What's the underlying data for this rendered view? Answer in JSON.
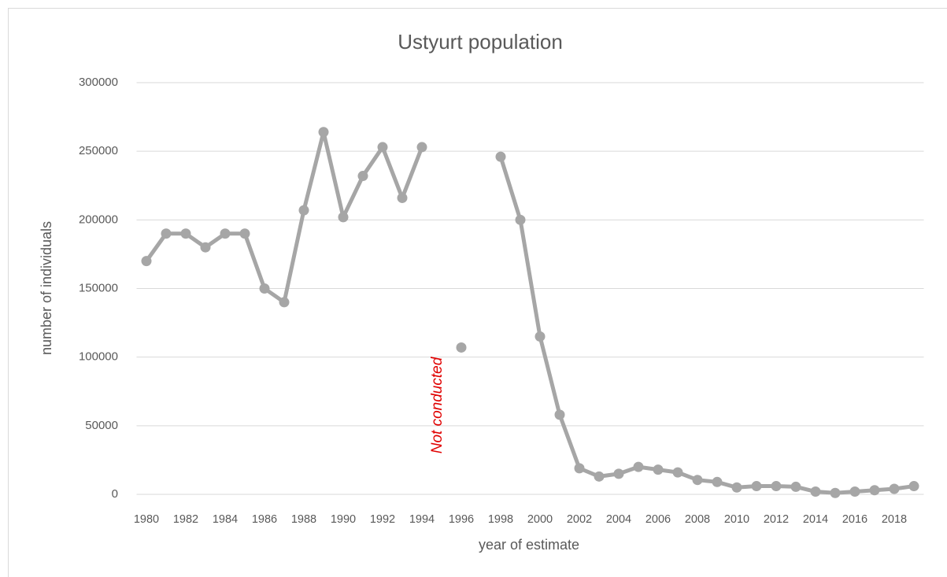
{
  "chart_data": {
    "type": "line",
    "title": "Ustyurt population",
    "x_label": "year of estimate",
    "y_label": "number of individuals",
    "annotation": "Not conducted",
    "annotation_color": "#e00000",
    "categories": [
      "1980",
      null,
      "1982",
      null,
      "1984",
      null,
      "1986",
      null,
      "1988",
      null,
      "1990",
      null,
      "1992",
      null,
      "1994",
      null,
      "1996",
      null,
      "1998",
      null,
      "2000",
      null,
      "2002",
      null,
      "2004",
      null,
      "2006",
      null,
      "2008",
      null,
      "2010",
      null,
      "2012",
      null,
      "2014",
      null,
      "2016",
      null,
      "2018",
      null
    ],
    "series": [
      {
        "name": "Ustyurt population",
        "color": "#a6a6a6",
        "values": [
          170000,
          190000,
          190000,
          180000,
          190000,
          190000,
          150000,
          140000,
          207000,
          264000,
          202000,
          232000,
          253000,
          216000,
          253000,
          null,
          107000,
          null,
          246000,
          200000,
          115000,
          58000,
          19000,
          13000,
          15000,
          20000,
          18000,
          16000,
          10500,
          9000,
          5000,
          6000,
          6000,
          5500,
          2000,
          1000,
          2000,
          3000,
          4000,
          6000
        ]
      }
    ],
    "ylim": [
      0,
      300000
    ],
    "yticks": [
      0,
      50000,
      100000,
      150000,
      200000,
      250000,
      300000
    ],
    "grid": true
  }
}
